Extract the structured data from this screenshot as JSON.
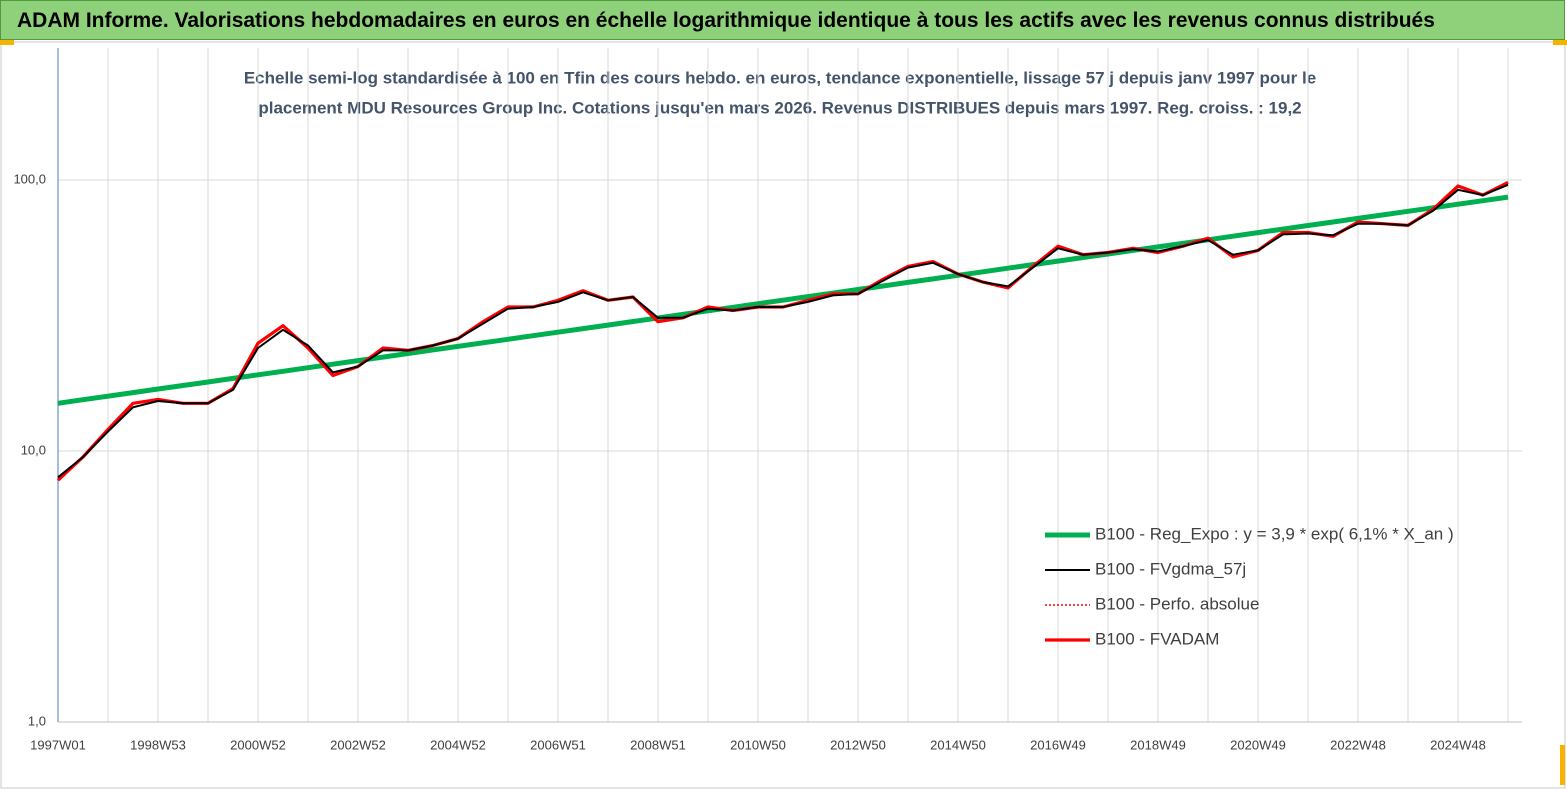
{
  "header": {
    "title": "ADAM Informe. Valorisations hebdomadaires en euros en échelle logarithmique identique à tous les actifs avec les revenus connus distribués"
  },
  "chart_data": {
    "type": "line",
    "title": [
      "Echelle semi-log standardisée à 100 en Tfin des cours hebdo. en euros, tendance exponentielle, lissage 57 j depuis janv 1997 pour le",
      "placement MDU Resources Group Inc. Cotations jusqu'en mars 2026. Revenus DISTRIBUES depuis mars 1997. Reg. croiss. : 19,2"
    ],
    "categories": [
      "1997W01",
      null,
      null,
      null,
      "1998W53",
      null,
      null,
      null,
      "2000W52",
      null,
      null,
      null,
      "2002W52",
      null,
      null,
      null,
      "2004W52",
      null,
      null,
      null,
      "2006W51",
      null,
      null,
      null,
      "2008W51",
      null,
      null,
      null,
      "2010W50",
      null,
      null,
      null,
      "2012W50",
      null,
      null,
      null,
      "2014W50",
      null,
      null,
      null,
      "2016W49",
      null,
      null,
      null,
      "2018W49",
      null,
      null,
      null,
      "2020W49",
      null,
      null,
      null,
      "2022W48",
      null,
      null,
      null,
      "2024W48",
      null,
      null
    ],
    "log_scale": true,
    "ylim": [
      1,
      307
    ],
    "yticks": [
      {
        "value": 1,
        "label": "1,0"
      },
      {
        "value": 10,
        "label": "10,0"
      },
      {
        "value": 100,
        "label": "100,0"
      }
    ],
    "grid": true,
    "legend": "lower right",
    "series": [
      {
        "name": "B100 - Reg_Expo : y = 3,9 *  exp( 6,1% *  X_an )",
        "color": "#00b050",
        "style": "solid",
        "values": [
          15,
          15.46,
          15.93,
          16.42,
          16.93,
          17.45,
          17.98,
          18.53,
          19.1,
          19.69,
          20.29,
          20.91,
          21.55,
          22.21,
          22.9,
          23.6,
          24.32,
          25.07,
          25.84,
          26.63,
          27.45,
          28.29,
          29.16,
          30.05,
          30.97,
          31.92,
          32.9,
          33.91,
          34.95,
          36.02,
          37.12,
          38.26,
          39.43,
          40.64,
          41.89,
          43.17,
          44.5,
          45.86,
          47.27,
          48.72,
          50.21,
          51.75,
          53.34,
          54.97,
          56.66,
          58.4,
          60.19,
          62.03,
          63.94,
          65.9,
          67.92,
          70.0,
          72.15,
          74.36,
          76.64,
          78.99,
          81.41,
          83.91,
          86.48
        ]
      },
      {
        "name": "B100 - FVgdma_57j",
        "color": "#000000",
        "style": "solid",
        "values": [
          8,
          9.5,
          11.8,
          14.5,
          15.3,
          15,
          15,
          16.8,
          24,
          28,
          24.5,
          19.5,
          20.5,
          23.5,
          23.5,
          24.5,
          26,
          29.5,
          33.5,
          34,
          35.5,
          38.5,
          36,
          37,
          31,
          31,
          33.5,
          33,
          34,
          34,
          35.5,
          37.5,
          38,
          42.5,
          47.5,
          49.5,
          45,
          42,
          40.5,
          47.5,
          56,
          53,
          54,
          55.5,
          54.5,
          57,
          60,
          53,
          55,
          63,
          63.5,
          62.5,
          69,
          69,
          68,
          77,
          92,
          88,
          96
        ]
      },
      {
        "name": "B100 - Perfo. absolue",
        "color": "#ff0000",
        "style": "dotted",
        "values": [
          7.8,
          9.5,
          12,
          15,
          15.5,
          15,
          15,
          17,
          25,
          29,
          24,
          19,
          20.5,
          24,
          23.5,
          24.5,
          26,
          30,
          34,
          34,
          36,
          39,
          36,
          37,
          30,
          31,
          34,
          33,
          34,
          34,
          36,
          38,
          38,
          43,
          48,
          50,
          45,
          42,
          40,
          48,
          57,
          53,
          54,
          56,
          54,
          57,
          61,
          52,
          55,
          64,
          64,
          62,
          70,
          69,
          68,
          78,
          95,
          88,
          98
        ]
      },
      {
        "name": "B100 - FVADAM",
        "color": "#ff0000",
        "style": "thick",
        "values": [
          7.8,
          9.5,
          12,
          15,
          15.5,
          15,
          15,
          17,
          25,
          29,
          24,
          19,
          20.5,
          24,
          23.5,
          24.5,
          26,
          30,
          34,
          34,
          36,
          39,
          36,
          37,
          30,
          31,
          34,
          33,
          34,
          34,
          36,
          38,
          38,
          43,
          48,
          50,
          45,
          42,
          40,
          48,
          57,
          53,
          54,
          56,
          54,
          57,
          61,
          52,
          55,
          64,
          64,
          62,
          70,
          69,
          68,
          78,
          95,
          88,
          98
        ]
      }
    ]
  }
}
